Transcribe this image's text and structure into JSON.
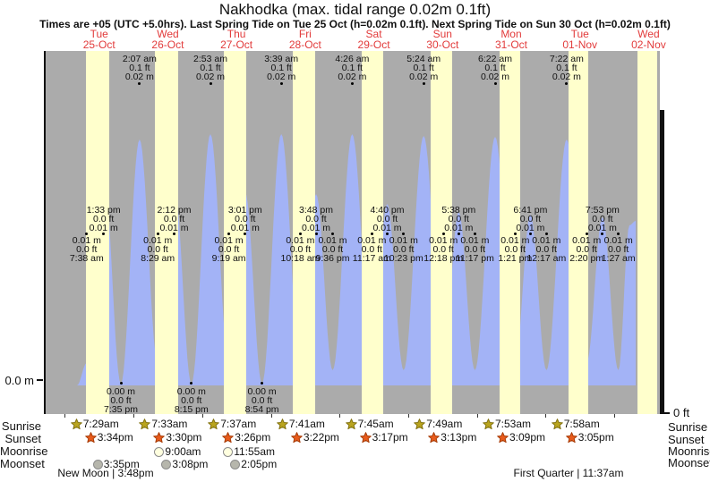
{
  "title": "Nakhodka (max. tidal range 0.02m 0.1ft)",
  "subtitle": "Times are +05 (UTC +5.0hrs). Last Spring Tide on Tue 25 Oct (h=0.02m 0.1ft). Next Spring Tide on Sun 30 Oct (h=0.02m 0.1ft)",
  "y_axis": {
    "left_zero": "0.0 m",
    "right_zero": "0 ft"
  },
  "side_labels": [
    "Sunrise",
    "Sunset",
    "Moonrise",
    "Moonset"
  ],
  "colors": {
    "night": "#ababab",
    "day": "#ffffcc",
    "water": "#a3b3f6",
    "date_red": "#e23b3b"
  },
  "days": [
    {
      "name": "Tue",
      "date": "25-Oct",
      "sunrise": "7:29am",
      "sunset": "3:34pm",
      "moonset": "3:35pm",
      "phase": "New Moon | 3:48pm"
    },
    {
      "name": "Wed",
      "date": "26-Oct",
      "sunrise": "7:33am",
      "sunset": "3:30pm",
      "moonrise": "9:00am",
      "moonset": "3:08pm"
    },
    {
      "name": "Thu",
      "date": "27-Oct",
      "sunrise": "7:37am",
      "sunset": "3:26pm",
      "moonrise": "11:55am",
      "moonset": "2:05pm"
    },
    {
      "name": "Fri",
      "date": "28-Oct",
      "sunrise": "7:41am",
      "sunset": "3:22pm"
    },
    {
      "name": "Sat",
      "date": "29-Oct",
      "sunrise": "7:45am",
      "sunset": "3:17pm"
    },
    {
      "name": "Sun",
      "date": "30-Oct",
      "sunrise": "7:49am",
      "sunset": "3:13pm"
    },
    {
      "name": "Mon",
      "date": "31-Oct",
      "sunrise": "7:53am",
      "sunset": "3:09pm"
    },
    {
      "name": "Tue",
      "date": "01-Nov",
      "sunrise": "7:58am",
      "sunset": "3:05pm",
      "phase": "First Quarter | 11:37am"
    },
    {
      "name": "Wed",
      "date": "02-Nov"
    }
  ],
  "chart_data": {
    "type": "area",
    "title": "Nakhodka tide height",
    "y_unit": "m",
    "y_zero_labels": {
      "left": "0.0 m",
      "right": "0 ft"
    },
    "events": [
      {
        "day": 1,
        "time": "7:38 am",
        "m": "0.01 m",
        "ft": "0.0 ft",
        "kind": "low"
      },
      {
        "day": 1,
        "time": "1:33 pm",
        "m": "0.01 m",
        "ft": "0.0 ft",
        "kind": "high"
      },
      {
        "day": 1,
        "time": "7:35 pm",
        "m": "0.00 m",
        "ft": "0.0 ft",
        "kind": "zero_low"
      },
      {
        "day": 2,
        "time": "2:07 am",
        "m": "0.02 m",
        "ft": "0.1 ft",
        "kind": "main_high"
      },
      {
        "day": 2,
        "time": "8:29 am",
        "m": "0.01 m",
        "ft": "0.0 ft",
        "kind": "low"
      },
      {
        "day": 2,
        "time": "2:12 pm",
        "m": "0.01 m",
        "ft": "0.0 ft",
        "kind": "high"
      },
      {
        "day": 2,
        "time": "8:15 pm",
        "m": "0.00 m",
        "ft": "0.0 ft",
        "kind": "zero_low"
      },
      {
        "day": 3,
        "time": "2:53 am",
        "m": "0.02 m",
        "ft": "0.1 ft",
        "kind": "main_high"
      },
      {
        "day": 3,
        "time": "9:19 am",
        "m": "0.01 m",
        "ft": "0.0 ft",
        "kind": "low"
      },
      {
        "day": 3,
        "time": "3:01 pm",
        "m": "0.01 m",
        "ft": "0.0 ft",
        "kind": "high"
      },
      {
        "day": 3,
        "time": "8:54 pm",
        "m": "0.00 m",
        "ft": "0.0 ft",
        "kind": "zero_low"
      },
      {
        "day": 4,
        "time": "3:39 am",
        "m": "0.02 m",
        "ft": "0.1 ft",
        "kind": "main_high"
      },
      {
        "day": 4,
        "time": "10:18 am",
        "m": "0.01 m",
        "ft": "0.0 ft",
        "kind": "low"
      },
      {
        "day": 4,
        "time": "3:48 pm",
        "m": "0.01 m",
        "ft": "0.0 ft",
        "kind": "high"
      },
      {
        "day": 4,
        "time": "9:36 pm",
        "m": "0.01 m",
        "ft": "0.0 ft",
        "kind": "low"
      },
      {
        "day": 5,
        "time": "4:26 am",
        "m": "0.02 m",
        "ft": "0.1 ft",
        "kind": "main_high"
      },
      {
        "day": 5,
        "time": "11:17 am",
        "m": "0.01 m",
        "ft": "0.0 ft",
        "kind": "low"
      },
      {
        "day": 5,
        "time": "4:40 pm",
        "m": "0.01 m",
        "ft": "0.0 ft",
        "kind": "high"
      },
      {
        "day": 5,
        "time": "10:23 pm",
        "m": "0.01 m",
        "ft": "0.0 ft",
        "kind": "low"
      },
      {
        "day": 6,
        "time": "5:24 am",
        "m": "0.02 m",
        "ft": "0.1 ft",
        "kind": "main_high"
      },
      {
        "day": 6,
        "time": "12:18 pm",
        "m": "0.01 m",
        "ft": "0.0 ft",
        "kind": "low"
      },
      {
        "day": 6,
        "time": "5:38 pm",
        "m": "0.01 m",
        "ft": "0.0 ft",
        "kind": "high"
      },
      {
        "day": 6,
        "time": "11:17 pm",
        "m": "0.01 m",
        "ft": "0.0 ft",
        "kind": "low"
      },
      {
        "day": 7,
        "time": "6:22 am",
        "m": "0.02 m",
        "ft": "0.1 ft",
        "kind": "main_high"
      },
      {
        "day": 7,
        "time": "1:21 pm",
        "m": "0.01 m",
        "ft": "0.0 ft",
        "kind": "low"
      },
      {
        "day": 7,
        "time": "6:41 pm",
        "m": "0.01 m",
        "ft": "0.0 ft",
        "kind": "high"
      },
      {
        "day": 8,
        "time": "12:17 am",
        "m": "0.01 m",
        "ft": "0.0 ft",
        "kind": "low"
      },
      {
        "day": 8,
        "time": "7:22 am",
        "m": "0.02 m",
        "ft": "0.1 ft",
        "kind": "main_high"
      },
      {
        "day": 8,
        "time": "2:20 pm",
        "m": "0.01 m",
        "ft": "0.0 ft",
        "kind": "low"
      },
      {
        "day": 8,
        "time": "7:53 pm",
        "m": "0.01 m",
        "ft": "0.0 ft",
        "kind": "high"
      },
      {
        "day": 9,
        "time": "1:27 am",
        "m": "0.01 m",
        "ft": "0.0 ft",
        "kind": "low"
      }
    ]
  }
}
